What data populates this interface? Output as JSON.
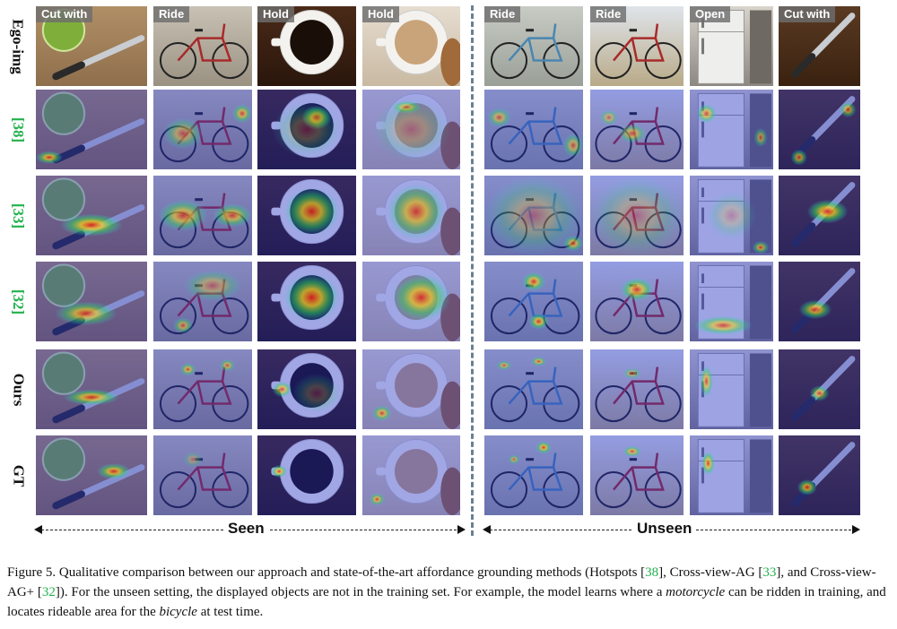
{
  "figure": {
    "row_labels": [
      {
        "text": "Ego-img",
        "cite": false
      },
      {
        "text": "[38]",
        "cite": true
      },
      {
        "text": "[33]",
        "cite": true
      },
      {
        "text": "[32]",
        "cite": true
      },
      {
        "text": "Ours",
        "cite": false
      },
      {
        "text": "GT",
        "cite": false
      }
    ],
    "columns": [
      {
        "action": "Cut with",
        "object": "knife-lime",
        "setting": "seen"
      },
      {
        "action": "Ride",
        "object": "bicycle-red",
        "setting": "seen"
      },
      {
        "action": "Hold",
        "object": "coffee-cup-beans",
        "setting": "seen"
      },
      {
        "action": "Hold",
        "object": "coffee-cup-cookie",
        "setting": "seen"
      },
      {
        "action": "Ride",
        "object": "bicycle-blue",
        "setting": "unseen"
      },
      {
        "action": "Ride",
        "object": "bicycle-red-field",
        "setting": "unseen"
      },
      {
        "action": "Open",
        "object": "refrigerator",
        "setting": "unseen"
      },
      {
        "action": "Cut with",
        "object": "knife-dark",
        "setting": "unseen"
      }
    ],
    "seen_label": "Seen",
    "unseen_label": "Unseen",
    "colors": {
      "heat_low": "#1a2ad6",
      "heat_mid": "#2fd35a",
      "heat_high": "#e21b1b",
      "citation": "#22b14c",
      "divider": "#6a8090"
    }
  },
  "caption": {
    "prefix": "Figure 5. Qualitative comparison between our approach and state-of-the-art affordance grounding methods (Hotspots [",
    "ref1": "38",
    "mid1": "], Cross-view-AG [",
    "ref2": "33",
    "mid2": "], and Cross-view-AG+ [",
    "ref3": "32",
    "mid3": "]). For the unseen setting, the displayed objects are not in the training set. For example, the model learns where a ",
    "em1": "motorcycle",
    "mid4": " can be ridden in training, and locates rideable area for the ",
    "em2": "bicycle",
    "suffix": " at test time."
  }
}
